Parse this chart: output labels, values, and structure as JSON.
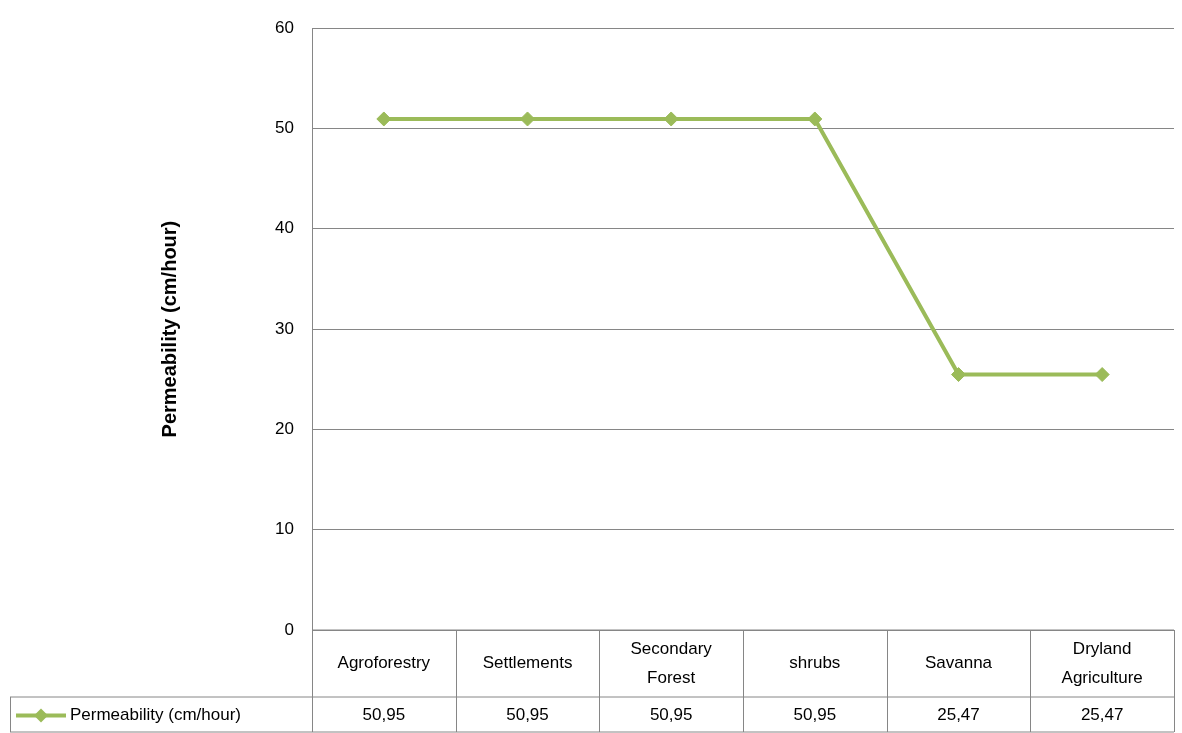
{
  "chart_data": {
    "type": "line",
    "ylabel": "Permeability (cm/hour)",
    "categories": [
      "Agroforestry",
      "Settlements",
      "Secondary Forest",
      "shrubs",
      "Savanna",
      "Dryland Agriculture"
    ],
    "series": [
      {
        "name": "Permeability (cm/hour)",
        "color": "#9bbb59",
        "values": [
          50.95,
          50.95,
          50.95,
          50.95,
          25.47,
          25.47
        ],
        "value_labels": [
          "50,95",
          "50,95",
          "50,95",
          "50,95",
          "25,47",
          "25,47"
        ]
      }
    ],
    "ylim": [
      0,
      60
    ],
    "yticks": [
      0,
      10,
      20,
      30,
      40,
      50,
      60
    ],
    "grid": "y",
    "legend": "bottom",
    "marker": "diamond",
    "line_style": "solid"
  }
}
